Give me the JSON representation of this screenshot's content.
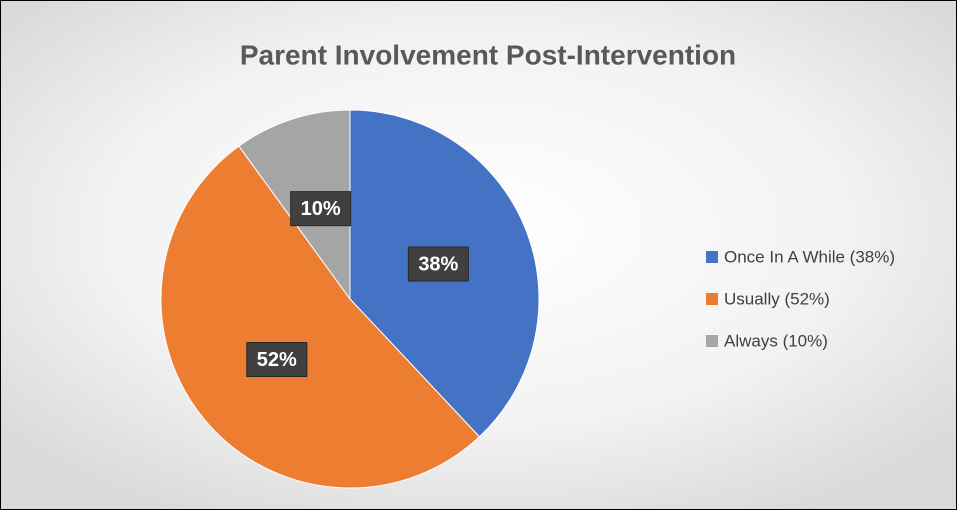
{
  "chart_data": {
    "type": "pie",
    "title": "Parent Involvement Post-Intervention",
    "categories": [
      "Once In A While (38%)",
      "Usually (52%)",
      "Always (10%)"
    ],
    "values": [
      38,
      52,
      10
    ],
    "value_labels": [
      "38%",
      "52%",
      "10%"
    ],
    "colors": [
      "#4472c4",
      "#ed7d31",
      "#a5a5a5"
    ],
    "legend": "right"
  }
}
